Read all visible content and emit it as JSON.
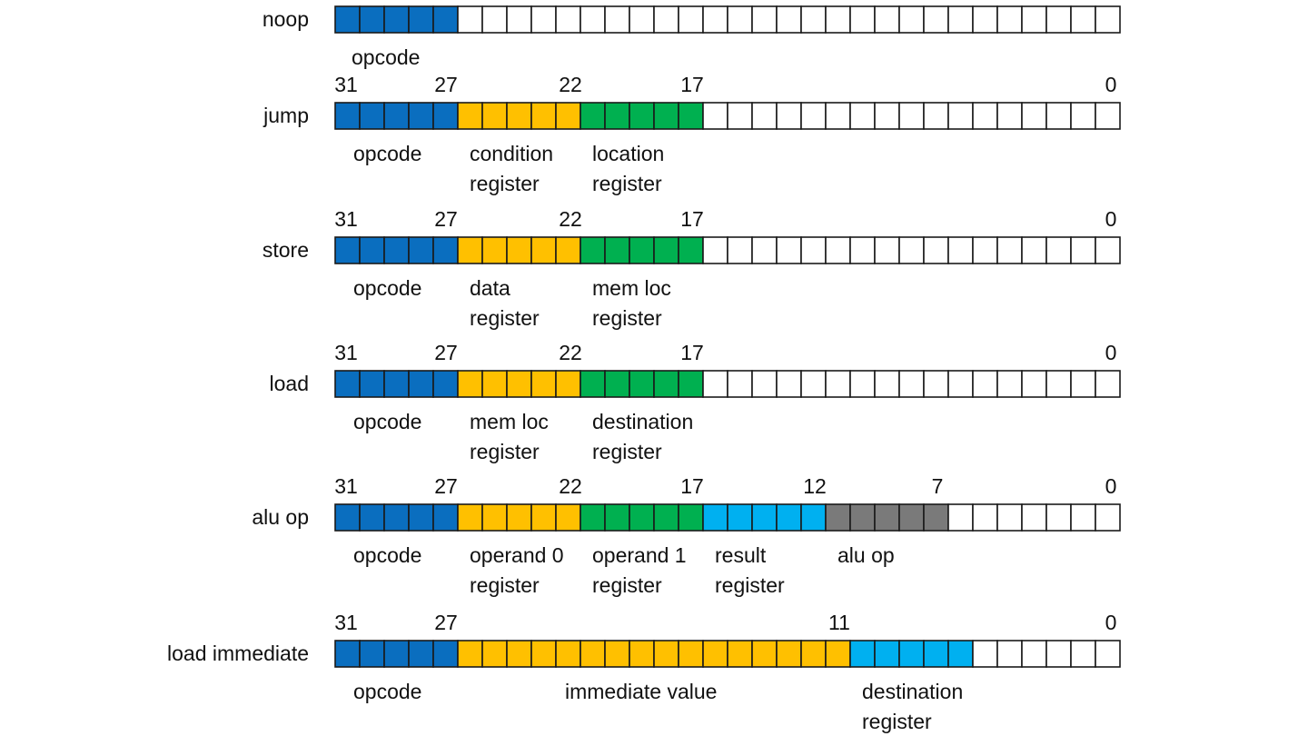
{
  "colors": {
    "blue": "#0a6ebf",
    "gold": "#ffc000",
    "green": "#00b050",
    "cyan": "#00b0f0",
    "gray": "#7a7a7a",
    "empty": "#ffffff"
  },
  "instructions": [
    {
      "name": "noop",
      "bit_numbers": [],
      "fields": [
        {
          "hi": 31,
          "lo": 27,
          "color": "blue",
          "label": [
            "opcode"
          ]
        }
      ]
    },
    {
      "name": "jump",
      "bit_numbers": [
        "31",
        "27",
        "22",
        "17",
        "0"
      ],
      "fields": [
        {
          "hi": 31,
          "lo": 27,
          "color": "blue",
          "label": [
            "opcode"
          ]
        },
        {
          "hi": 26,
          "lo": 22,
          "color": "gold",
          "label": [
            "condition",
            "register"
          ]
        },
        {
          "hi": 21,
          "lo": 17,
          "color": "green",
          "label": [
            "location",
            "register"
          ]
        }
      ]
    },
    {
      "name": "store",
      "bit_numbers": [
        "31",
        "27",
        "22",
        "17",
        "0"
      ],
      "fields": [
        {
          "hi": 31,
          "lo": 27,
          "color": "blue",
          "label": [
            "opcode"
          ]
        },
        {
          "hi": 26,
          "lo": 22,
          "color": "gold",
          "label": [
            "data",
            "register"
          ]
        },
        {
          "hi": 21,
          "lo": 17,
          "color": "green",
          "label": [
            "mem loc",
            "register"
          ]
        }
      ]
    },
    {
      "name": "load",
      "bit_numbers": [
        "31",
        "27",
        "22",
        "17",
        "0"
      ],
      "fields": [
        {
          "hi": 31,
          "lo": 27,
          "color": "blue",
          "label": [
            "opcode"
          ]
        },
        {
          "hi": 26,
          "lo": 22,
          "color": "gold",
          "label": [
            "mem loc",
            "register"
          ]
        },
        {
          "hi": 21,
          "lo": 17,
          "color": "green",
          "label": [
            "destination",
            "register"
          ]
        }
      ]
    },
    {
      "name": "alu op",
      "bit_numbers": [
        "31",
        "27",
        "22",
        "17",
        "12",
        "7",
        "0"
      ],
      "fields": [
        {
          "hi": 31,
          "lo": 27,
          "color": "blue",
          "label": [
            "opcode"
          ]
        },
        {
          "hi": 26,
          "lo": 22,
          "color": "gold",
          "label": [
            "operand 0",
            "register"
          ]
        },
        {
          "hi": 21,
          "lo": 17,
          "color": "green",
          "label": [
            "operand 1",
            "register"
          ]
        },
        {
          "hi": 16,
          "lo": 12,
          "color": "cyan",
          "label": [
            "result",
            "register"
          ]
        },
        {
          "hi": 11,
          "lo": 7,
          "color": "gray",
          "label": [
            "alu op"
          ]
        }
      ]
    },
    {
      "name": "load immediate",
      "bit_numbers": [
        "31",
        "27",
        "11",
        "0"
      ],
      "fields": [
        {
          "hi": 31,
          "lo": 27,
          "color": "blue",
          "label": [
            "opcode"
          ]
        },
        {
          "hi": 26,
          "lo": 11,
          "color": "gold",
          "label": [
            "immediate value"
          ]
        },
        {
          "hi": 10,
          "lo": 6,
          "color": "cyan",
          "label": [
            "destination",
            "register"
          ]
        }
      ]
    }
  ]
}
